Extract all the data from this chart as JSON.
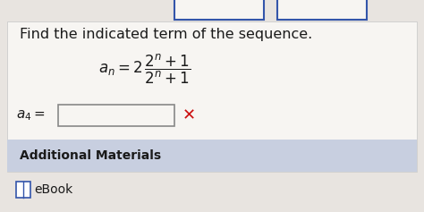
{
  "title": "Find the indicated term of the sequence.",
  "title_fontsize": 11.5,
  "title_color": "#1a1a1a",
  "bg_color": "#e8e4e0",
  "main_bg": "#f7f5f2",
  "bottom_bg": "#c8cfe0",
  "input_box_color": "#f7f5f2",
  "input_box_border": "#888888",
  "top_box_border": "#3355aa",
  "x_color": "#cc1111",
  "additional_text": "Additional Materials",
  "ebook_text": "eBook",
  "ebook_icon_color": "#3355aa",
  "formula_color": "#1a1a1a",
  "formula_fontsize": 12
}
